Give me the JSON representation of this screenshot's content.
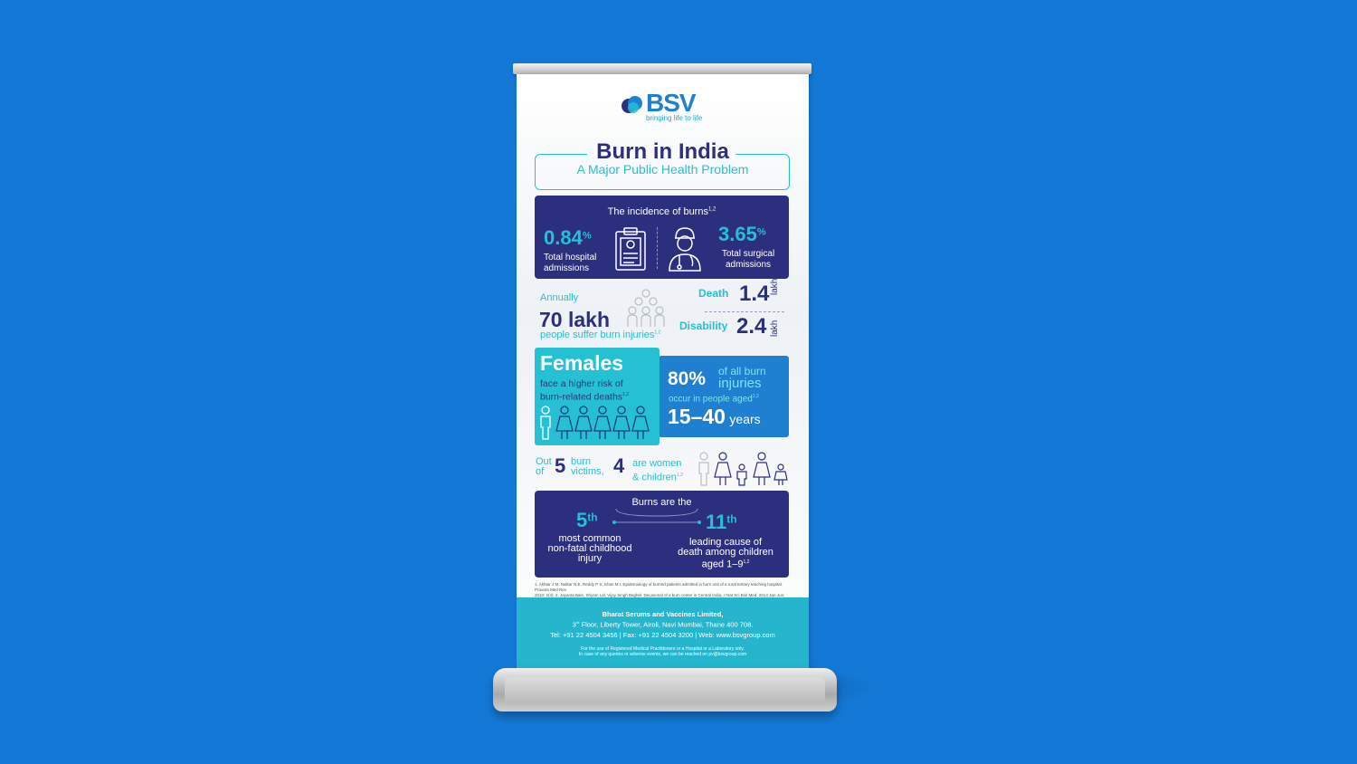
{
  "brand": {
    "name": "BSV",
    "tagline": "bringing life to life",
    "logo_color": "#1f7fd0"
  },
  "header": {
    "title": "Burn in India",
    "subtitle": "A Major Public Health Problem"
  },
  "incidence": {
    "title": "The incidence of burns",
    "title_ref": "1,2",
    "left": {
      "value": "0.84",
      "unit": "%",
      "label_line1": "Total hospital",
      "label_line2": "admissions",
      "icon": "clipboard-icon"
    },
    "right": {
      "value": "3.65",
      "unit": "%",
      "label_line1": "Total surgical",
      "label_line2": "admissions",
      "icon": "doctor-icon"
    }
  },
  "annual": {
    "prefix": "Annually",
    "value": "70 lakh",
    "suffix": "people suffer burn injuries",
    "suffix_ref": "1,2",
    "death_label": "Death",
    "death_value": "1.4",
    "disability_label": "Disability",
    "disability_value": "2.4",
    "unit": "lakh"
  },
  "females": {
    "title": "Females",
    "line1": "face a higher risk of",
    "line2": "burn-related deaths",
    "ref": "1,2"
  },
  "age": {
    "percent": "80%",
    "line1": "of all burn",
    "line2": "injuries",
    "line3": "occur in people aged",
    "ref": "1,2",
    "range": "15–40",
    "range_unit": "years"
  },
  "victims": {
    "out": "Out",
    "of": "of",
    "total": "5",
    "burn": "burn",
    "victims_word": "victims,",
    "count": "4",
    "are_women": "are women",
    "children": "& children",
    "ref": "1,2"
  },
  "ranking": {
    "title": "Burns are the",
    "left_rank": "5",
    "left_suffix": "th",
    "left_line1": "most common",
    "left_line2": "non-fatal childhood",
    "left_line3": "injury",
    "right_rank": "11",
    "right_suffix": "th",
    "right_line1": "leading cause of",
    "right_line2": "death among children",
    "right_line3": "aged 1–9",
    "right_ref": "1,2"
  },
  "references": {
    "line1": "1. Akhtar J M, Nalkar N E, Reddy P S, Khan M I. Epidemiology of burned patients admitted in burn unit of a rural tertiary teaching hospital. Pravara Med Rev",
    "line2": "2010; 2(4).  2. Jayanta Bain, Shyam Lal, Vijay Singh Baghel. Decasonal of a burn center in Central India. J Nat Sci Biol Med. 2014 Jan-Jun; 5(1): 116-122."
  },
  "footer": {
    "company": "Bharat Serums and Vaccines Limited,",
    "address_floor": "3",
    "address_sup": "rd",
    "address": "Floor, Liberty Tower, Airoli, Navi Mumbai, Thane 400 708.",
    "contact": "Tel: +91 22 4504 3456  |  Fax: +91 22 4504 3200  |  Web: www.bsvgroup.com",
    "disclaimer1": "For the use of Registered Medical Practitioners or a Hospital or a Laboratory only.",
    "disclaimer2": "In case of any queries or adverse events, we can be reached on pv@bsvgroup.com"
  },
  "colors": {
    "background": "#1479d6",
    "navy": "#2b2f7e",
    "teal": "#25c0d4",
    "blue": "#1f7fd0"
  }
}
